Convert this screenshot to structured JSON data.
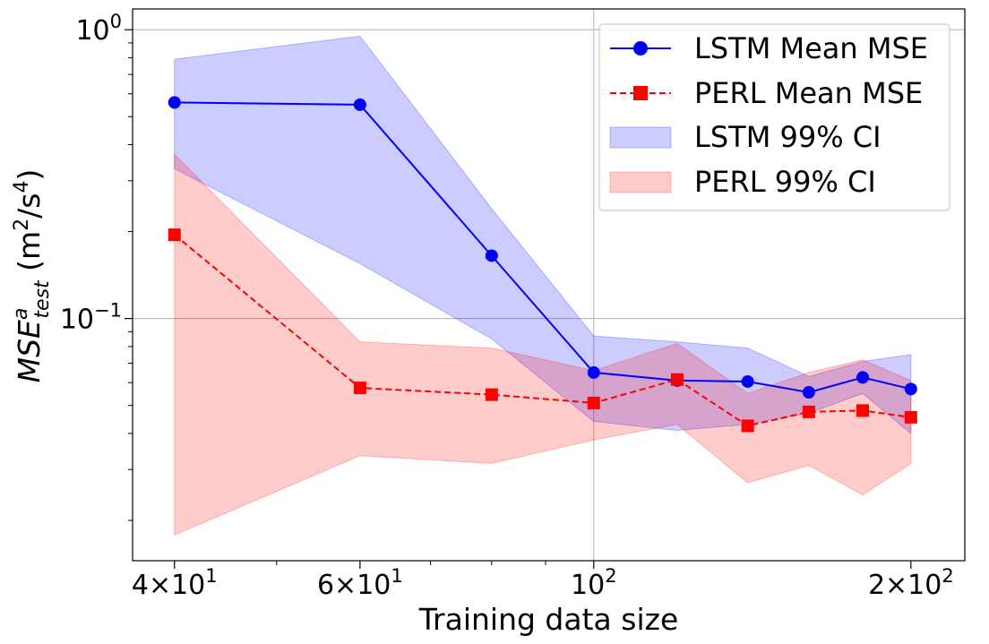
{
  "chart_data": {
    "type": "line",
    "title": "",
    "xlabel": "Training data size",
    "ylabel_parts": {
      "base": "MSE",
      "sup": "a",
      "sub": "test",
      "unit_open": " (m",
      "unit_sup1": "2",
      "unit_mid": "/s",
      "unit_sup2": "4",
      "unit_close": ")"
    },
    "x_scale": "log",
    "y_scale": "log",
    "xlim": [
      36.5,
      225
    ],
    "ylim": [
      0.0145,
      1.18
    ],
    "grid": true,
    "legend_position": "top-right",
    "x_ticks": [
      {
        "value": 40,
        "mantissa": "4",
        "times": "×",
        "base": "10",
        "exp": "1"
      },
      {
        "value": 60,
        "mantissa": "6",
        "times": "×",
        "base": "10",
        "exp": "1"
      },
      {
        "value": 100,
        "mantissa": "",
        "times": "",
        "base": "10",
        "exp": "2"
      },
      {
        "value": 200,
        "mantissa": "2",
        "times": "×",
        "base": "10",
        "exp": "2"
      }
    ],
    "y_ticks": [
      {
        "value": 1.0,
        "base": "10",
        "exp": "0"
      },
      {
        "value": 0.1,
        "base": "10",
        "exp": "−1"
      }
    ],
    "x": [
      40,
      60,
      80,
      100,
      120,
      140,
      160,
      180,
      200
    ],
    "series": [
      {
        "name": "LSTM Mean MSE",
        "color": "#0000ff",
        "marker": "circle",
        "line_style": "solid",
        "values": [
          0.56,
          0.55,
          0.165,
          0.065,
          0.061,
          0.0605,
          0.0555,
          0.0625,
          0.057
        ],
        "ci_name": "LSTM 99% CI",
        "ci_color": "#0000ff",
        "ci_lower": [
          0.33,
          0.155,
          0.085,
          0.044,
          0.041,
          0.043,
          0.047,
          0.055,
          0.04
        ],
        "ci_upper": [
          0.79,
          0.95,
          0.24,
          0.087,
          0.083,
          0.079,
          0.063,
          0.071,
          0.075
        ]
      },
      {
        "name": "PERL Mean MSE",
        "color": "#ff0000",
        "marker": "square",
        "line_style": "dashed",
        "values": [
          0.195,
          0.0575,
          0.0545,
          0.051,
          0.0615,
          0.0425,
          0.0475,
          0.048,
          0.0455
        ],
        "ci_name": "PERL 99% CI",
        "ci_color": "#ff0000",
        "ci_lower": [
          0.0178,
          0.0335,
          0.0315,
          0.038,
          0.043,
          0.027,
          0.031,
          0.0245,
          0.0315
        ],
        "ci_upper": [
          0.37,
          0.083,
          0.079,
          0.066,
          0.082,
          0.055,
          0.065,
          0.072,
          0.061
        ]
      }
    ]
  }
}
